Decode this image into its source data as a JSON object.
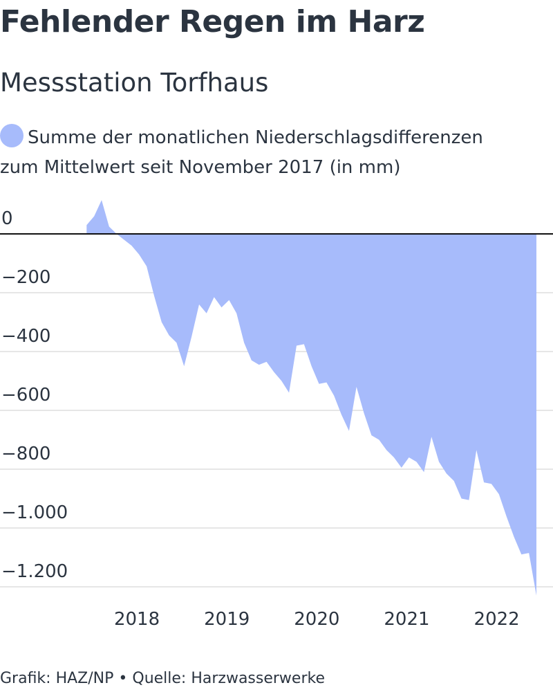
{
  "title": "Fehlender Regen im Harz",
  "subtitle": "Messstation Torfhaus",
  "legend": {
    "label_line1": "Summe der monatlichen Niederschlagsdifferenzen",
    "label_line2": "zum Mittelwert seit November 2017 (in mm)"
  },
  "footer": {
    "credit": "Grafik: HAZ/NP",
    "separator": "•",
    "source": "Quelle: Harzwasserwerke"
  },
  "colors": {
    "area": "#a7bbfb",
    "zero_line": "#111111",
    "grid": "#dddddd",
    "text": "#2b3440"
  },
  "chart_data": {
    "type": "area",
    "x_ticks": [
      "2018",
      "2019",
      "2020",
      "2021",
      "2022"
    ],
    "y_ticks": [
      {
        "value": 0,
        "label": "0"
      },
      {
        "value": -200,
        "label": "−200"
      },
      {
        "value": -400,
        "label": "−400"
      },
      {
        "value": -600,
        "label": "−600"
      },
      {
        "value": -800,
        "label": "−800"
      },
      {
        "value": -1000,
        "label": "−1.000"
      },
      {
        "value": -1200,
        "label": "−1.200"
      }
    ],
    "ylim": [
      -1230,
      120
    ],
    "xlim": [
      "2017-10",
      "2022-11"
    ],
    "grid": true,
    "series": [
      {
        "points": [
          [
            "2017-11",
            30
          ],
          [
            "2017-12",
            60
          ],
          [
            "2018-01",
            115
          ],
          [
            "2018-02",
            25
          ],
          [
            "2018-03",
            0
          ],
          [
            "2018-04",
            -20
          ],
          [
            "2018-05",
            -40
          ],
          [
            "2018-06",
            -70
          ],
          [
            "2018-07",
            -110
          ],
          [
            "2018-08",
            -210
          ],
          [
            "2018-09",
            -300
          ],
          [
            "2018-10",
            -345
          ],
          [
            "2018-11",
            -370
          ],
          [
            "2018-12",
            -450
          ],
          [
            "2019-01",
            -350
          ],
          [
            "2019-02",
            -240
          ],
          [
            "2019-03",
            -270
          ],
          [
            "2019-04",
            -215
          ],
          [
            "2019-05",
            -250
          ],
          [
            "2019-06",
            -225
          ],
          [
            "2019-07",
            -270
          ],
          [
            "2019-08",
            -370
          ],
          [
            "2019-09",
            -430
          ],
          [
            "2019-10",
            -445
          ],
          [
            "2019-11",
            -435
          ],
          [
            "2019-12",
            -470
          ],
          [
            "2020-01",
            -500
          ],
          [
            "2020-02",
            -540
          ],
          [
            "2020-03",
            -380
          ],
          [
            "2020-04",
            -375
          ],
          [
            "2020-05",
            -450
          ],
          [
            "2020-06",
            -510
          ],
          [
            "2020-07",
            -505
          ],
          [
            "2020-08",
            -550
          ],
          [
            "2020-09",
            -615
          ],
          [
            "2020-10",
            -670
          ],
          [
            "2020-11",
            -520
          ],
          [
            "2020-12",
            -610
          ],
          [
            "2021-01",
            -685
          ],
          [
            "2021-02",
            -700
          ],
          [
            "2021-03",
            -735
          ],
          [
            "2021-04",
            -760
          ],
          [
            "2021-05",
            -795
          ],
          [
            "2021-06",
            -760
          ],
          [
            "2021-07",
            -775
          ],
          [
            "2021-08",
            -810
          ],
          [
            "2021-09",
            -690
          ],
          [
            "2021-10",
            -775
          ],
          [
            "2021-11",
            -815
          ],
          [
            "2021-12",
            -840
          ],
          [
            "2022-01",
            -900
          ],
          [
            "2022-02",
            -905
          ],
          [
            "2022-03",
            -735
          ],
          [
            "2022-04",
            -845
          ],
          [
            "2022-05",
            -850
          ],
          [
            "2022-06",
            -885
          ],
          [
            "2022-07",
            -960
          ],
          [
            "2022-08",
            -1030
          ],
          [
            "2022-09",
            -1090
          ],
          [
            "2022-10",
            -1085
          ],
          [
            "2022-11",
            -1230
          ]
        ]
      }
    ]
  }
}
